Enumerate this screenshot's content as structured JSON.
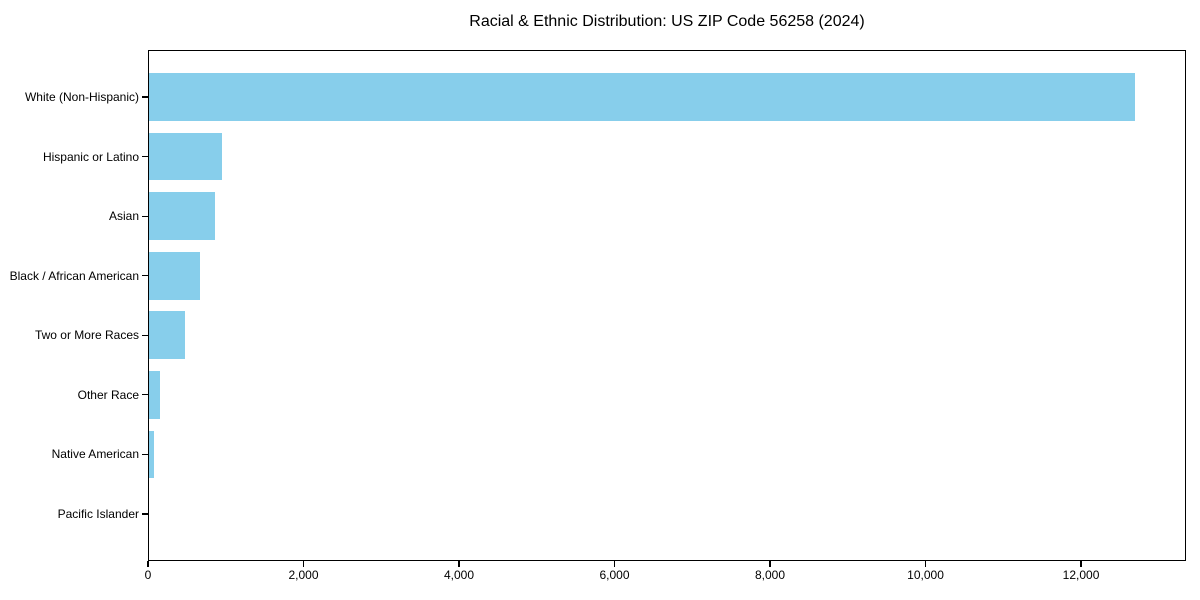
{
  "chart_data": {
    "type": "bar",
    "orientation": "horizontal",
    "title": "Racial & Ethnic Distribution: US ZIP Code 56258 (2024)",
    "categories": [
      "White (Non-Hispanic)",
      "Hispanic or Latino",
      "Asian",
      "Black / African American",
      "Two or More Races",
      "Other Race",
      "Native American",
      "Pacific Islander"
    ],
    "values": [
      12700,
      950,
      860,
      670,
      470,
      150,
      80,
      0
    ],
    "xlabel": "",
    "ylabel": "",
    "xlim": [
      0,
      13350
    ],
    "x_ticks": [
      0,
      2000,
      4000,
      6000,
      8000,
      10000,
      12000
    ],
    "x_tick_labels": [
      "0",
      "2,000",
      "4,000",
      "6,000",
      "8,000",
      "10,000",
      "12,000"
    ],
    "grid": false,
    "legend": "none",
    "bar_color": "#87CEEB",
    "axis_color": "#000000",
    "text_color": "#000000",
    "background_color": "#ffffff"
  }
}
